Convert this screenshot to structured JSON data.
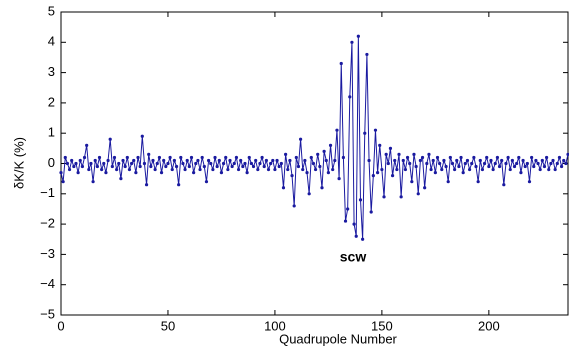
{
  "chart_data": {
    "type": "line",
    "x_label": "Quadrupole Number",
    "y_label": "δK/K (%)",
    "annotation": "scw",
    "xlim": [
      0,
      237
    ],
    "ylim": [
      -5,
      5
    ],
    "xticks": [
      0,
      50,
      100,
      150,
      200
    ],
    "yticks": [
      {
        "value": -5,
        "label": "−5"
      },
      {
        "value": -4,
        "label": "−4"
      },
      {
        "value": -3,
        "label": "−3"
      },
      {
        "value": -2,
        "label": "−2"
      },
      {
        "value": -1,
        "label": "−1"
      },
      0,
      1,
      2,
      3,
      4,
      5
    ],
    "grid": false,
    "series": [
      {
        "color": "#1a1aa0",
        "x": [
          0,
          1,
          2,
          3,
          4,
          5,
          6,
          7,
          8,
          9,
          10,
          11,
          12,
          13,
          14,
          15,
          16,
          17,
          18,
          19,
          20,
          21,
          22,
          23,
          24,
          25,
          26,
          27,
          28,
          29,
          30,
          31,
          32,
          33,
          34,
          35,
          36,
          37,
          38,
          39,
          40,
          41,
          42,
          43,
          44,
          45,
          46,
          47,
          48,
          49,
          50,
          51,
          52,
          53,
          54,
          55,
          56,
          57,
          58,
          59,
          60,
          61,
          62,
          63,
          64,
          65,
          66,
          67,
          68,
          69,
          70,
          71,
          72,
          73,
          74,
          75,
          76,
          77,
          78,
          79,
          80,
          81,
          82,
          83,
          84,
          85,
          86,
          87,
          88,
          89,
          90,
          91,
          92,
          93,
          94,
          95,
          96,
          97,
          98,
          99,
          100,
          101,
          102,
          103,
          104,
          105,
          106,
          107,
          108,
          109,
          110,
          111,
          112,
          113,
          114,
          115,
          116,
          117,
          118,
          119,
          120,
          121,
          122,
          123,
          124,
          125,
          126,
          127,
          128,
          129,
          130,
          131,
          132,
          133,
          134,
          135,
          136,
          137,
          138,
          139,
          140,
          141,
          142,
          143,
          144,
          145,
          146,
          147,
          148,
          149,
          150,
          151,
          152,
          153,
          154,
          155,
          156,
          157,
          158,
          159,
          160,
          161,
          162,
          163,
          164,
          165,
          166,
          167,
          168,
          169,
          170,
          171,
          172,
          173,
          174,
          175,
          176,
          177,
          178,
          179,
          180,
          181,
          182,
          183,
          184,
          185,
          186,
          187,
          188,
          189,
          190,
          191,
          192,
          193,
          194,
          195,
          196,
          197,
          198,
          199,
          200,
          201,
          202,
          203,
          204,
          205,
          206,
          207,
          208,
          209,
          210,
          211,
          212,
          213,
          214,
          215,
          216,
          217,
          218,
          219,
          220,
          221,
          222,
          223,
          224,
          225,
          226,
          227,
          228,
          229,
          230,
          231,
          232,
          233,
          234,
          235,
          236,
          237
        ],
        "values": [
          -0.3,
          -0.6,
          0.2,
          0.0,
          -0.2,
          0.1,
          -0.1,
          0.0,
          -0.3,
          0.1,
          -0.1,
          0.2,
          0.6,
          -0.2,
          0.0,
          -0.6,
          0.1,
          -0.1,
          0.2,
          -0.2,
          0.0,
          -0.3,
          0.1,
          0.8,
          -0.1,
          0.2,
          -0.2,
          0.0,
          -0.5,
          0.1,
          -0.1,
          0.2,
          -0.2,
          0.0,
          0.1,
          -0.3,
          0.2,
          -0.1,
          0.9,
          0.0,
          -0.7,
          0.3,
          -0.1,
          0.1,
          -0.2,
          0.0,
          0.2,
          -0.3,
          0.1,
          -0.1,
          0.0,
          0.2,
          -0.2,
          0.1,
          -0.1,
          -0.7,
          0.2,
          0.0,
          -0.2,
          0.1,
          -0.1,
          0.2,
          -0.3,
          0.0,
          0.1,
          -0.2,
          0.2,
          -0.1,
          -0.6,
          0.1,
          0.0,
          -0.2,
          0.2,
          -0.1,
          0.1,
          -0.3,
          0.0,
          0.2,
          -0.2,
          0.1,
          -0.1,
          0.0,
          0.2,
          -0.2,
          0.1,
          -0.1,
          0.0,
          -0.3,
          0.2,
          0.0,
          -0.1,
          0.1,
          -0.2,
          0.0,
          0.2,
          -0.1,
          0.1,
          -0.2,
          0.0,
          0.1,
          -0.2,
          0.1,
          -0.1,
          0.0,
          -0.8,
          0.3,
          -0.2,
          0.1,
          -0.4,
          -1.4,
          0.2,
          -0.1,
          0.8,
          -0.2,
          0.1,
          -0.3,
          -1.0,
          0.2,
          0.0,
          -0.2,
          0.3,
          -0.1,
          -0.8,
          0.4,
          0.1,
          -0.3,
          0.6,
          -0.2,
          0.1,
          1.1,
          -0.5,
          3.3,
          0.2,
          -1.9,
          -1.5,
          2.2,
          4.0,
          -2.0,
          -2.4,
          4.2,
          -1.2,
          -2.5,
          1.0,
          3.6,
          0.1,
          -1.6,
          -0.4,
          1.1,
          -0.3,
          0.6,
          -0.2,
          -1.1,
          0.3,
          0.0,
          0.5,
          -0.4,
          0.1,
          -0.2,
          0.3,
          -1.1,
          0.1,
          -0.2,
          0.2,
          0.0,
          -0.6,
          0.3,
          -0.1,
          -1.0,
          0.1,
          0.2,
          -0.8,
          0.0,
          0.3,
          -0.2,
          0.1,
          -0.3,
          0.2,
          0.0,
          -0.2,
          0.1,
          -0.1,
          -0.6,
          0.2,
          0.0,
          -0.2,
          0.1,
          -0.1,
          0.2,
          -0.3,
          0.0,
          0.1,
          -0.2,
          0.0,
          0.2,
          -0.1,
          -0.6,
          0.1,
          -0.2,
          0.0,
          0.2,
          -0.1,
          0.1,
          -0.2,
          0.0,
          0.2,
          -0.1,
          0.1,
          -0.7,
          0.0,
          0.2,
          -0.2,
          0.1,
          -0.1,
          0.0,
          0.2,
          -0.3,
          0.1,
          -0.1,
          0.0,
          -0.6,
          0.2,
          -0.1,
          0.1,
          0.0,
          -0.2,
          0.1,
          -0.1,
          0.2,
          -0.2,
          0.0,
          0.1,
          -0.2,
          0.0,
          0.2,
          -0.1,
          0.1,
          0.0,
          0.3
        ]
      }
    ]
  }
}
